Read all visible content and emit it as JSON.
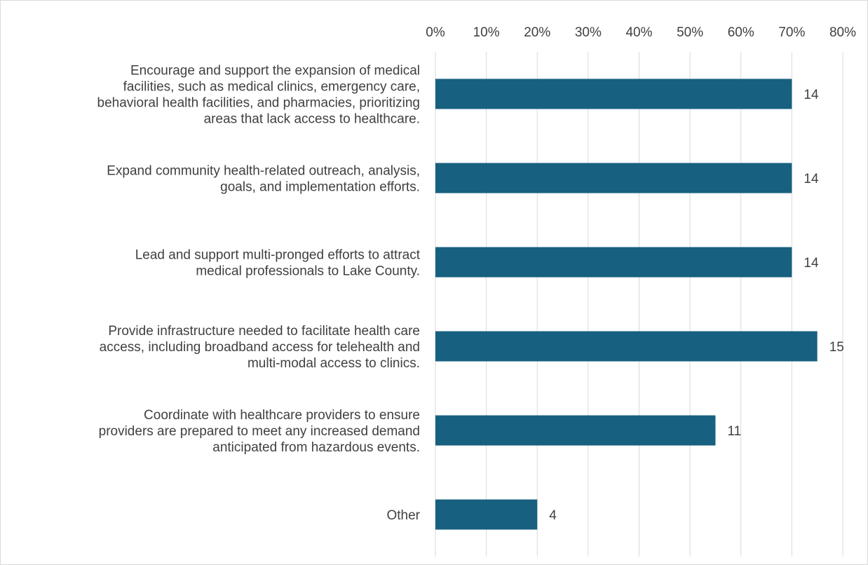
{
  "chart_data": {
    "type": "bar",
    "orientation": "horizontal",
    "categories": [
      [
        "Encourage and support the expansion of medical",
        "facilities, such as medical clinics, emergency care,",
        "behavioral health facilities, and pharmacies, prioritizing",
        "areas that lack access to healthcare."
      ],
      [
        "Expand community health-related outreach, analysis,",
        "goals, and implementation efforts."
      ],
      [
        "Lead and support multi-pronged efforts to attract",
        "medical professionals to Lake County."
      ],
      [
        "Provide infrastructure needed to facilitate health care",
        "access, including broadband access for telehealth and",
        "multi-modal access to clinics."
      ],
      [
        "Coordinate with healthcare providers to ensure",
        "providers are prepared to meet any increased demand",
        "anticipated from hazardous events."
      ],
      [
        "Other"
      ]
    ],
    "values": [
      70,
      70,
      70,
      75,
      55,
      20
    ],
    "data_labels": [
      "14",
      "14",
      "14",
      "15",
      "11",
      "4"
    ],
    "xlim": [
      0,
      80
    ],
    "x_ticks": [
      "0%",
      "10%",
      "20%",
      "30%",
      "40%",
      "50%",
      "60%",
      "70%",
      "80%"
    ],
    "axis_position": "top",
    "gridlines": true,
    "legend": "none",
    "colors": {
      "bar": "#17607f",
      "grid": "#d9d9d9",
      "text": "#404040"
    }
  }
}
